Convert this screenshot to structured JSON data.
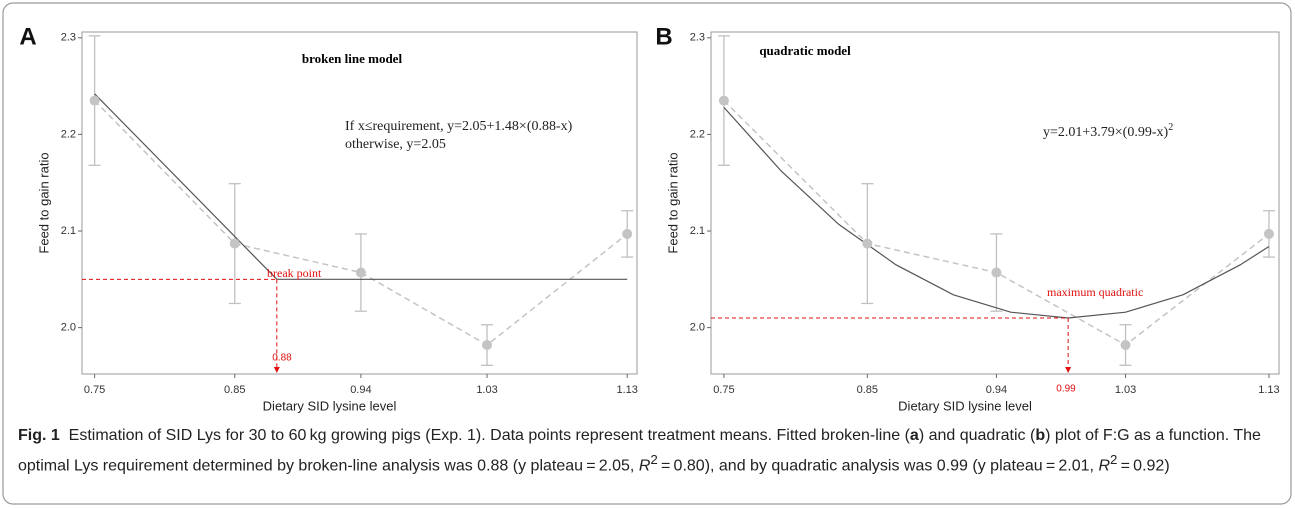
{
  "chart_data": [
    {
      "type": "line",
      "panel": "A",
      "title": "broken line model",
      "annotation": {
        "lines": [
          "If x≤requirement, y=2.05+1.48×(0.88-x)",
          "otherwise, y=2.05"
        ]
      },
      "x_label": "Dietary SID lysine level",
      "y_label": "Feed to gain ratio",
      "x": [
        0.75,
        0.85,
        0.94,
        1.03,
        1.13
      ],
      "values": [
        2.235,
        2.087,
        2.057,
        1.982,
        2.097
      ],
      "errors": [
        0.067,
        0.062,
        0.04,
        0.021,
        0.024
      ],
      "color": "#c4c4c4",
      "fit": {
        "x": [
          0.75,
          0.88,
          1.13
        ],
        "values": [
          2.242,
          2.05,
          2.05
        ],
        "color": "#555555"
      },
      "reference": {
        "x": 0.88,
        "y": 2.05,
        "label": "break point",
        "color": "#e01010"
      },
      "xlim": [
        0.741,
        1.137
      ],
      "ylim": [
        1.952,
        2.306
      ],
      "xticks": [
        0.75,
        0.85,
        0.94,
        1.03,
        1.13
      ],
      "yticks": [
        {
          "value": 2,
          "label": "2.0"
        },
        2.1,
        2.2,
        2.3
      ]
    },
    {
      "type": "line",
      "panel": "B",
      "title": "quadratic model",
      "annotation": {
        "lines": [
          "y=2.01+3.79×(0.99-x)"
        ],
        "superscript": "2"
      },
      "x_label": "Dietary SID lysine level",
      "y_label": "Feed to gain ratio",
      "x": [
        0.75,
        0.85,
        0.94,
        1.03,
        1.13
      ],
      "values": [
        2.235,
        2.087,
        2.057,
        1.982,
        2.097
      ],
      "errors": [
        0.067,
        0.062,
        0.04,
        0.021,
        0.024
      ],
      "color": "#c4c4c4",
      "fit": {
        "x": [
          0.75,
          0.79,
          0.83,
          0.87,
          0.91,
          0.95,
          0.99,
          1.03,
          1.07,
          1.11,
          1.13
        ],
        "values": [
          2.228,
          2.162,
          2.107,
          2.065,
          2.034,
          2.016,
          2.01,
          2.016,
          2.034,
          2.065,
          2.084
        ],
        "color": "#555555"
      },
      "reference": {
        "x": 0.99,
        "y": 2.01,
        "label": "maximum quadratic",
        "color": "#e01010"
      },
      "xlim": [
        0.741,
        1.137
      ],
      "ylim": [
        1.952,
        2.306
      ],
      "xticks": [
        0.75,
        0.85,
        0.94,
        1.03,
        1.13
      ],
      "yticks": [
        {
          "value": 2,
          "label": "2.0"
        },
        2.1,
        2.2,
        2.3
      ]
    }
  ],
  "caption": {
    "label": "Fig. 1",
    "segments": [
      "Estimation of SID Lys for 30 to 60 kg growing pigs (Exp. 1). Data points represent treatment means. Fitted broken-line (",
      "a",
      ") and quadratic (",
      "b",
      ") plot of F:G as a function. The optimal Lys requirement determined by broken-line analysis was 0.88 (y plateau = 2.05, ",
      "R",
      "2",
      " = 0.80), and by quadratic analysis was 0.99 (y plateau = 2.01, ",
      "R",
      "2",
      " = 0.92)"
    ]
  }
}
